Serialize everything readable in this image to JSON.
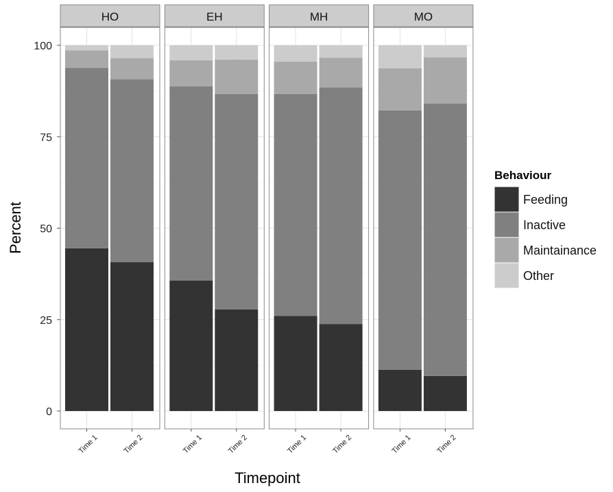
{
  "chart_data": {
    "type": "bar",
    "stacked": true,
    "percent": true,
    "facets": [
      "HO",
      "EH",
      "MH",
      "MO"
    ],
    "categories": [
      "Time 1",
      "Time 2"
    ],
    "xlabel": "Timepoint",
    "ylabel": "Percent",
    "ylim": [
      0,
      100
    ],
    "yticks": [
      0,
      25,
      50,
      75,
      100
    ],
    "grid": true,
    "legend": {
      "title": "Behaviour",
      "position": "right"
    },
    "series": [
      {
        "name": "Feeding",
        "color": "#333333",
        "values": {
          "HO": [
            44.5,
            40.7
          ],
          "EH": [
            35.7,
            27.8
          ],
          "MH": [
            26.0,
            23.8
          ],
          "MO": [
            11.3,
            9.6
          ]
        }
      },
      {
        "name": "Inactive",
        "color": "#808080",
        "values": {
          "HO": [
            49.3,
            50.0
          ],
          "EH": [
            53.1,
            58.9
          ],
          "MH": [
            60.7,
            64.7
          ],
          "MO": [
            70.9,
            74.5
          ]
        }
      },
      {
        "name": "Maintainance",
        "color": "#a9a9a9",
        "values": {
          "HO": [
            4.8,
            5.8
          ],
          "EH": [
            7.1,
            9.4
          ],
          "MH": [
            8.8,
            8.1
          ],
          "MO": [
            11.5,
            12.6
          ]
        }
      },
      {
        "name": "Other",
        "color": "#cccccc",
        "values": {
          "HO": [
            1.4,
            3.5
          ],
          "EH": [
            4.1,
            3.9
          ],
          "MH": [
            4.5,
            3.4
          ],
          "MO": [
            6.3,
            3.3
          ]
        }
      }
    ]
  }
}
